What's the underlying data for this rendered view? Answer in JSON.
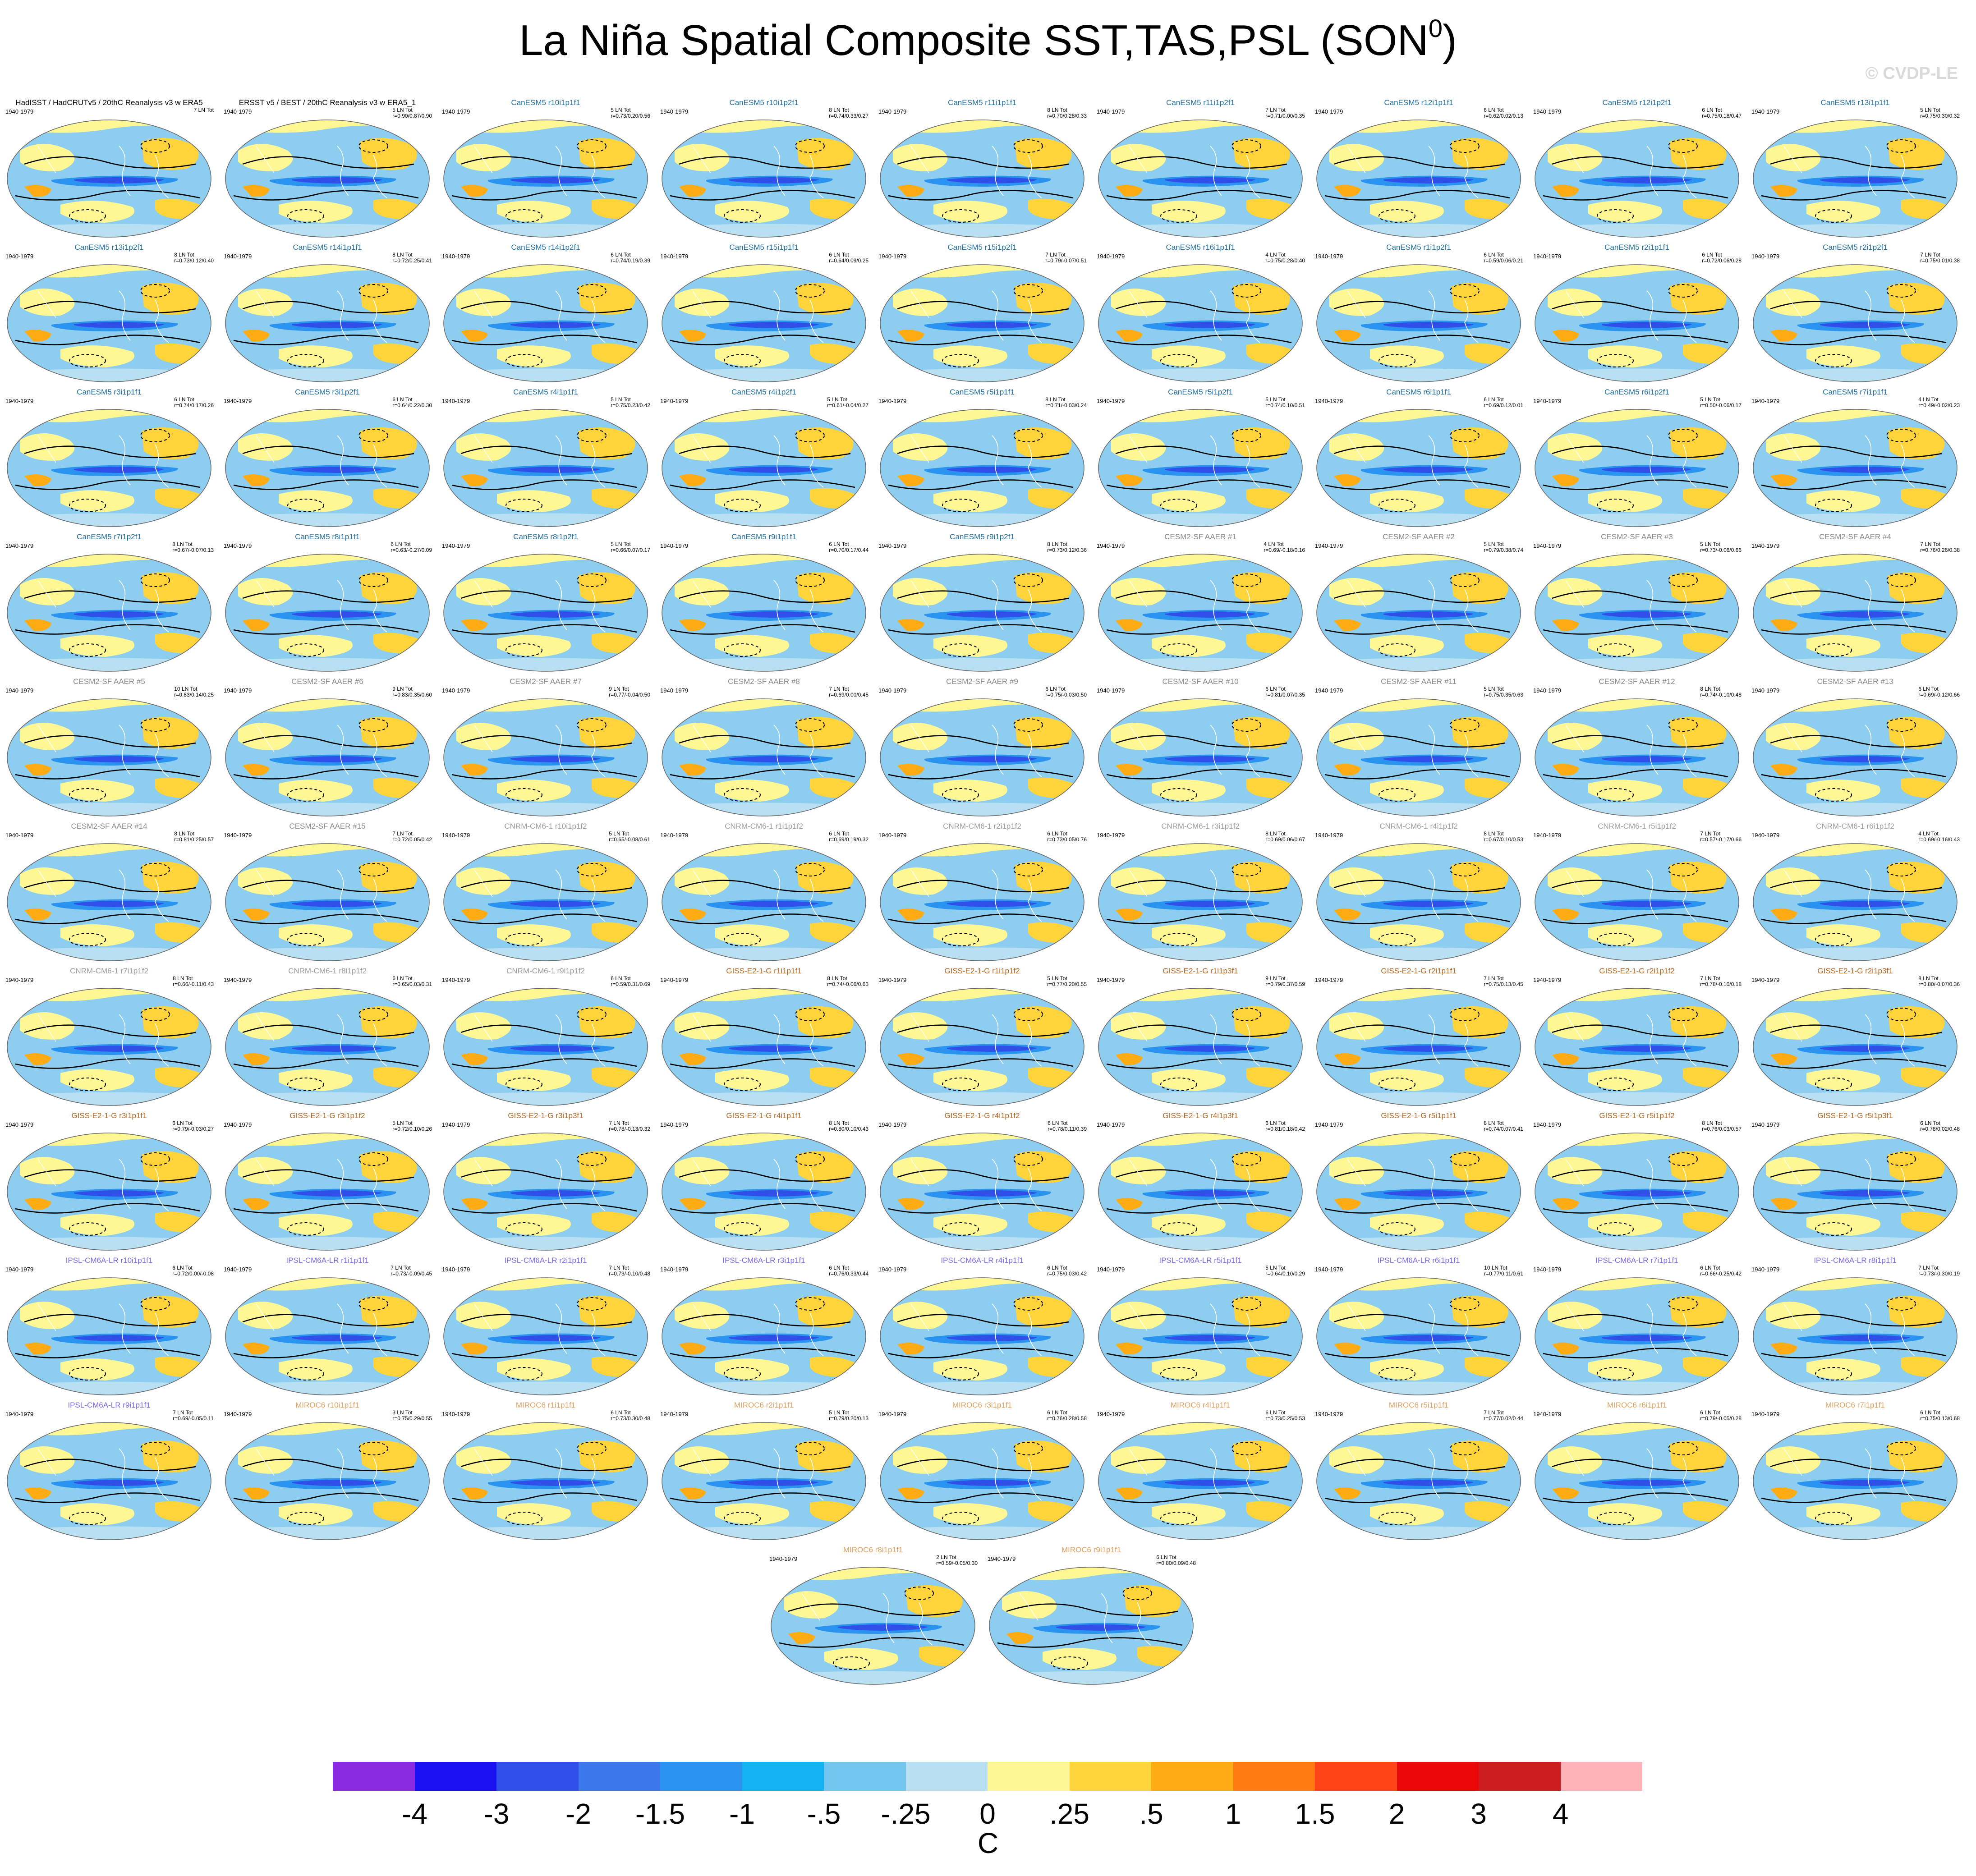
{
  "figure": {
    "title": "La Niña Spatial Composite SST,TAS,PSL (SON",
    "title_superscript": "0",
    "watermark": "© CVDP-LE",
    "units": "C"
  },
  "colorbar": {
    "colors": [
      "#8a2be2",
      "#1a10f0",
      "#2f4fe8",
      "#3d78ea",
      "#2a93f0",
      "#12b5f2",
      "#72c6ee",
      "#b9dff2",
      "#fff694",
      "#ffd43a",
      "#ffab14",
      "#ff7a10",
      "#ff4418",
      "#e80808",
      "#cc1e1e",
      "#ffb3b8"
    ],
    "labels": [
      "-4",
      "-3",
      "-2",
      "-1.5",
      "-1",
      "-.5",
      "-.25",
      "0",
      ".25",
      ".5",
      "1",
      "1.5",
      "2",
      "3",
      "4"
    ]
  },
  "panels": [
    {
      "title": "HadISST / HadCRUTv5 / 20thC Reanalysis v3 w ERA5",
      "period": "1940-1979",
      "count": "7 LN Tot",
      "stats": "",
      "title_color": "#000000"
    },
    {
      "title": "ERSST v5 / BEST / 20thC Reanalysis v3 w ERA5_1",
      "period": "1940-1979",
      "count": "5 LN Tot",
      "stats": "r=0.90/0.87/0.90",
      "title_color": "#000000"
    },
    {
      "title": "CanESM5 r10i1p1f1",
      "period": "1940-1979",
      "count": "5 LN Tot",
      "stats": "r=0.73/0.20/0.56",
      "title_color": "#1f6fa0"
    },
    {
      "title": "CanESM5 r10i1p2f1",
      "period": "1940-1979",
      "count": "8 LN Tot",
      "stats": "r=0.74/0.33/0.27",
      "title_color": "#1f6fa0"
    },
    {
      "title": "CanESM5 r11i1p1f1",
      "period": "1940-1979",
      "count": "8 LN Tot",
      "stats": "r=0.70/0.28/0.33",
      "title_color": "#1f6fa0"
    },
    {
      "title": "CanESM5 r11i1p2f1",
      "period": "1940-1979",
      "count": "7 LN Tot",
      "stats": "r=0.71/0.00/0.35",
      "title_color": "#1f6fa0"
    },
    {
      "title": "CanESM5 r12i1p1f1",
      "period": "1940-1979",
      "count": "6 LN Tot",
      "stats": "r=0.62/0.02/0.13",
      "title_color": "#1f6fa0"
    },
    {
      "title": "CanESM5 r12i1p2f1",
      "period": "1940-1979",
      "count": "6 LN Tot",
      "stats": "r=0.75/0.18/0.47",
      "title_color": "#1f6fa0"
    },
    {
      "title": "CanESM5 r13i1p1f1",
      "period": "1940-1979",
      "count": "5 LN Tot",
      "stats": "r=0.75/0.30/0.32",
      "title_color": "#1f6fa0"
    },
    {
      "title": "CanESM5 r13i1p2f1",
      "period": "1940-1979",
      "count": "8 LN Tot",
      "stats": "r=0.73/0.12/0.40",
      "title_color": "#1f6fa0"
    },
    {
      "title": "CanESM5 r14i1p1f1",
      "period": "1940-1979",
      "count": "8 LN Tot",
      "stats": "r=0.72/0.25/0.41",
      "title_color": "#1f6fa0"
    },
    {
      "title": "CanESM5 r14i1p2f1",
      "period": "1940-1979",
      "count": "6 LN Tot",
      "stats": "r=0.74/0.19/0.39",
      "title_color": "#1f6fa0"
    },
    {
      "title": "CanESM5 r15i1p1f1",
      "period": "1940-1979",
      "count": "6 LN Tot",
      "stats": "r=0.64/0.09/0.25",
      "title_color": "#1f6fa0"
    },
    {
      "title": "CanESM5 r15i1p2f1",
      "period": "1940-1979",
      "count": "7 LN Tot",
      "stats": "r=0.79/-0.07/0.51",
      "title_color": "#1f6fa0"
    },
    {
      "title": "CanESM5 r16i1p1f1",
      "period": "1940-1979",
      "count": "4 LN Tot",
      "stats": "r=0.75/0.28/0.40",
      "title_color": "#1f6fa0"
    },
    {
      "title": "CanESM5 r1i1p2f1",
      "period": "1940-1979",
      "count": "6 LN Tot",
      "stats": "r=0.59/0.06/0.21",
      "title_color": "#1f6fa0"
    },
    {
      "title": "CanESM5 r2i1p1f1",
      "period": "1940-1979",
      "count": "6 LN Tot",
      "stats": "r=0.72/0.06/0.28",
      "title_color": "#1f6fa0"
    },
    {
      "title": "CanESM5 r2i1p2f1",
      "period": "1940-1979",
      "count": "7 LN Tot",
      "stats": "r=0.75/0.01/0.38",
      "title_color": "#1f6fa0"
    },
    {
      "title": "CanESM5 r3i1p1f1",
      "period": "1940-1979",
      "count": "6 LN Tot",
      "stats": "r=0.74/0.17/0.26",
      "title_color": "#1f6fa0"
    },
    {
      "title": "CanESM5 r3i1p2f1",
      "period": "1940-1979",
      "count": "6 LN Tot",
      "stats": "r=0.64/0.22/0.30",
      "title_color": "#1f6fa0"
    },
    {
      "title": "CanESM5 r4i1p1f1",
      "period": "1940-1979",
      "count": "5 LN Tot",
      "stats": "r=0.75/0.23/0.42",
      "title_color": "#1f6fa0"
    },
    {
      "title": "CanESM5 r4i1p2f1",
      "period": "1940-1979",
      "count": "5 LN Tot",
      "stats": "r=0.61/-0.04/0.27",
      "title_color": "#1f6fa0"
    },
    {
      "title": "CanESM5 r5i1p1f1",
      "period": "1940-1979",
      "count": "8 LN Tot",
      "stats": "r=0.71/-0.03/0.24",
      "title_color": "#1f6fa0"
    },
    {
      "title": "CanESM5 r5i1p2f1",
      "period": "1940-1979",
      "count": "5 LN Tot",
      "stats": "r=0.74/0.10/0.51",
      "title_color": "#1f6fa0"
    },
    {
      "title": "CanESM5 r6i1p1f1",
      "period": "1940-1979",
      "count": "6 LN Tot",
      "stats": "r=0.69/0.12/0.01",
      "title_color": "#1f6fa0"
    },
    {
      "title": "CanESM5 r6i1p2f1",
      "period": "1940-1979",
      "count": "5 LN Tot",
      "stats": "r=0.50/-0.06/0.17",
      "title_color": "#1f6fa0"
    },
    {
      "title": "CanESM5 r7i1p1f1",
      "period": "1940-1979",
      "count": "4 LN Tot",
      "stats": "r=0.49/-0.02/0.23",
      "title_color": "#1f6fa0"
    },
    {
      "title": "CanESM5 r7i1p2f1",
      "period": "1940-1979",
      "count": "8 LN Tot",
      "stats": "r=0.67/-0.07/0.13",
      "title_color": "#1f6fa0"
    },
    {
      "title": "CanESM5 r8i1p1f1",
      "period": "1940-1979",
      "count": "6 LN Tot",
      "stats": "r=0.63/-0.27/0.09",
      "title_color": "#1f6fa0"
    },
    {
      "title": "CanESM5 r8i1p2f1",
      "period": "1940-1979",
      "count": "5 LN Tot",
      "stats": "r=0.66/0.07/0.17",
      "title_color": "#1f6fa0"
    },
    {
      "title": "CanESM5 r9i1p1f1",
      "period": "1940-1979",
      "count": "6 LN Tot",
      "stats": "r=0.70/0.17/0.44",
      "title_color": "#1f6fa0"
    },
    {
      "title": "CanESM5 r9i1p2f1",
      "period": "1940-1979",
      "count": "8 LN Tot",
      "stats": "r=0.73/0.12/0.36",
      "title_color": "#1f6fa0"
    },
    {
      "title": "CESM2-SF AAER #1",
      "period": "1940-1979",
      "count": "4 LN Tot",
      "stats": "r=0.69/-0.18/0.16",
      "title_color": "#8a8a8a"
    },
    {
      "title": "CESM2-SF AAER #2",
      "period": "1940-1979",
      "count": "5 LN Tot",
      "stats": "r=0.79/0.38/0.74",
      "title_color": "#8a8a8a"
    },
    {
      "title": "CESM2-SF AAER #3",
      "period": "1940-1979",
      "count": "5 LN Tot",
      "stats": "r=0.73/-0.06/0.66",
      "title_color": "#8a8a8a"
    },
    {
      "title": "CESM2-SF AAER #4",
      "period": "1940-1979",
      "count": "7 LN Tot",
      "stats": "r=0.76/0.26/0.38",
      "title_color": "#8a8a8a"
    },
    {
      "title": "CESM2-SF AAER #5",
      "period": "1940-1979",
      "count": "10 LN Tot",
      "stats": "r=0.83/0.14/0.25",
      "title_color": "#8a8a8a"
    },
    {
      "title": "CESM2-SF AAER #6",
      "period": "1940-1979",
      "count": "9 LN Tot",
      "stats": "r=0.83/0.35/0.60",
      "title_color": "#8a8a8a"
    },
    {
      "title": "CESM2-SF AAER #7",
      "period": "1940-1979",
      "count": "9 LN Tot",
      "stats": "r=0.77/-0.04/0.50",
      "title_color": "#8a8a8a"
    },
    {
      "title": "CESM2-SF AAER #8",
      "period": "1940-1979",
      "count": "7 LN Tot",
      "stats": "r=0.69/0.00/0.45",
      "title_color": "#8a8a8a"
    },
    {
      "title": "CESM2-SF AAER #9",
      "period": "1940-1979",
      "count": "6 LN Tot",
      "stats": "r=0.75/-0.03/0.50",
      "title_color": "#8a8a8a"
    },
    {
      "title": "CESM2-SF AAER #10",
      "period": "1940-1979",
      "count": "6 LN Tot",
      "stats": "r=0.81/0.07/0.35",
      "title_color": "#8a8a8a"
    },
    {
      "title": "CESM2-SF AAER #11",
      "period": "1940-1979",
      "count": "5 LN Tot",
      "stats": "r=0.75/0.35/0.63",
      "title_color": "#8a8a8a"
    },
    {
      "title": "CESM2-SF AAER #12",
      "period": "1940-1979",
      "count": "8 LN Tot",
      "stats": "r=0.74/-0.10/0.48",
      "title_color": "#8a8a8a"
    },
    {
      "title": "CESM2-SF AAER #13",
      "period": "1940-1979",
      "count": "6 LN Tot",
      "stats": "r=0.69/-0.12/0.66",
      "title_color": "#8a8a8a"
    },
    {
      "title": "CESM2-SF AAER #14",
      "period": "1940-1979",
      "count": "8 LN Tot",
      "stats": "r=0.81/0.25/0.57",
      "title_color": "#8a8a8a"
    },
    {
      "title": "CESM2-SF AAER #15",
      "period": "1940-1979",
      "count": "7 LN Tot",
      "stats": "r=0.72/0.05/0.42",
      "title_color": "#8a8a8a"
    },
    {
      "title": "CNRM-CM6-1 r10i1p1f2",
      "period": "1940-1979",
      "count": "5 LN Tot",
      "stats": "r=0.65/-0.08/0.61",
      "title_color": "#9c9c9c"
    },
    {
      "title": "CNRM-CM6-1 r1i1p1f2",
      "period": "1940-1979",
      "count": "6 LN Tot",
      "stats": "r=0.69/0.19/0.32",
      "title_color": "#9c9c9c"
    },
    {
      "title": "CNRM-CM6-1 r2i1p1f2",
      "period": "1940-1979",
      "count": "6 LN Tot",
      "stats": "r=0.73/0.05/0.76",
      "title_color": "#9c9c9c"
    },
    {
      "title": "CNRM-CM6-1 r3i1p1f2",
      "period": "1940-1979",
      "count": "8 LN Tot",
      "stats": "r=0.69/0.06/0.67",
      "title_color": "#9c9c9c"
    },
    {
      "title": "CNRM-CM6-1 r4i1p1f2",
      "period": "1940-1979",
      "count": "8 LN Tot",
      "stats": "r=0.67/0.10/0.53",
      "title_color": "#9c9c9c"
    },
    {
      "title": "CNRM-CM6-1 r5i1p1f2",
      "period": "1940-1979",
      "count": "7 LN Tot",
      "stats": "r=0.57/-0.17/0.66",
      "title_color": "#9c9c9c"
    },
    {
      "title": "CNRM-CM6-1 r6i1p1f2",
      "period": "1940-1979",
      "count": "4 LN Tot",
      "stats": "r=0.69/-0.16/0.43",
      "title_color": "#9c9c9c"
    },
    {
      "title": "CNRM-CM6-1 r7i1p1f2",
      "period": "1940-1979",
      "count": "8 LN Tot",
      "stats": "r=0.66/-0.11/0.43",
      "title_color": "#9c9c9c"
    },
    {
      "title": "CNRM-CM6-1 r8i1p1f2",
      "period": "1940-1979",
      "count": "6 LN Tot",
      "stats": "r=0.65/0.03/0.31",
      "title_color": "#9c9c9c"
    },
    {
      "title": "CNRM-CM6-1 r9i1p1f2",
      "period": "1940-1979",
      "count": "6 LN Tot",
      "stats": "r=0.59/0.31/0.69",
      "title_color": "#9c9c9c"
    },
    {
      "title": "GISS-E2-1-G r1i1p1f1",
      "period": "1940-1979",
      "count": "8 LN Tot",
      "stats": "r=0.74/-0.06/0.63",
      "title_color": "#b5651d"
    },
    {
      "title": "GISS-E2-1-G r1i1p1f2",
      "period": "1940-1979",
      "count": "5 LN Tot",
      "stats": "r=0.77/0.20/0.55",
      "title_color": "#b5651d"
    },
    {
      "title": "GISS-E2-1-G r1i1p3f1",
      "period": "1940-1979",
      "count": "9 LN Tot",
      "stats": "r=0.79/0.37/0.59",
      "title_color": "#b5651d"
    },
    {
      "title": "GISS-E2-1-G r2i1p1f1",
      "period": "1940-1979",
      "count": "7 LN Tot",
      "stats": "r=0.75/0.13/0.45",
      "title_color": "#b5651d"
    },
    {
      "title": "GISS-E2-1-G r2i1p1f2",
      "period": "1940-1979",
      "count": "7 LN Tot",
      "stats": "r=0.78/-0.10/0.18",
      "title_color": "#b5651d"
    },
    {
      "title": "GISS-E2-1-G r2i1p3f1",
      "period": "1940-1979",
      "count": "8 LN Tot",
      "stats": "r=0.80/-0.07/0.36",
      "title_color": "#b5651d"
    },
    {
      "title": "GISS-E2-1-G r3i1p1f1",
      "period": "1940-1979",
      "count": "6 LN Tot",
      "stats": "r=0.79/-0.03/0.27",
      "title_color": "#b5651d"
    },
    {
      "title": "GISS-E2-1-G r3i1p1f2",
      "period": "1940-1979",
      "count": "5 LN Tot",
      "stats": "r=0.72/0.10/0.26",
      "title_color": "#b5651d"
    },
    {
      "title": "GISS-E2-1-G r3i1p3f1",
      "period": "1940-1979",
      "count": "7 LN Tot",
      "stats": "r=0.78/-0.13/0.32",
      "title_color": "#b5651d"
    },
    {
      "title": "GISS-E2-1-G r4i1p1f1",
      "period": "1940-1979",
      "count": "8 LN Tot",
      "stats": "r=0.80/0.10/0.43",
      "title_color": "#b5651d"
    },
    {
      "title": "GISS-E2-1-G r4i1p1f2",
      "period": "1940-1979",
      "count": "6 LN Tot",
      "stats": "r=0.78/0.11/0.39",
      "title_color": "#b5651d"
    },
    {
      "title": "GISS-E2-1-G r4i1p3f1",
      "period": "1940-1979",
      "count": "6 LN Tot",
      "stats": "r=0.81/0.18/0.42",
      "title_color": "#b5651d"
    },
    {
      "title": "GISS-E2-1-G r5i1p1f1",
      "period": "1940-1979",
      "count": "8 LN Tot",
      "stats": "r=0.74/0.07/0.41",
      "title_color": "#b5651d"
    },
    {
      "title": "GISS-E2-1-G r5i1p1f2",
      "period": "1940-1979",
      "count": "8 LN Tot",
      "stats": "r=0.76/0.03/0.57",
      "title_color": "#b5651d"
    },
    {
      "title": "GISS-E2-1-G r5i1p3f1",
      "period": "1940-1979",
      "count": "6 LN Tot",
      "stats": "r=0.78/0.02/0.48",
      "title_color": "#b5651d"
    },
    {
      "title": "IPSL-CM6A-LR r10i1p1f1",
      "period": "1940-1979",
      "count": "6 LN Tot",
      "stats": "r=0.72/0.00/-0.08",
      "title_color": "#7b68ee"
    },
    {
      "title": "IPSL-CM6A-LR r1i1p1f1",
      "period": "1940-1979",
      "count": "7 LN Tot",
      "stats": "r=0.73/-0.09/0.45",
      "title_color": "#7b68ee"
    },
    {
      "title": "IPSL-CM6A-LR r2i1p1f1",
      "period": "1940-1979",
      "count": "7 LN Tot",
      "stats": "r=0.73/-0.10/0.48",
      "title_color": "#7b68ee"
    },
    {
      "title": "IPSL-CM6A-LR r3i1p1f1",
      "period": "1940-1979",
      "count": "6 LN Tot",
      "stats": "r=0.76/0.33/0.44",
      "title_color": "#7b68ee"
    },
    {
      "title": "IPSL-CM6A-LR r4i1p1f1",
      "period": "1940-1979",
      "count": "6 LN Tot",
      "stats": "r=0.75/0.03/0.42",
      "title_color": "#7b68ee"
    },
    {
      "title": "IPSL-CM6A-LR r5i1p1f1",
      "period": "1940-1979",
      "count": "5 LN Tot",
      "stats": "r=0.64/0.10/0.29",
      "title_color": "#7b68ee"
    },
    {
      "title": "IPSL-CM6A-LR r6i1p1f1",
      "period": "1940-1979",
      "count": "10 LN Tot",
      "stats": "r=0.77/0.11/0.61",
      "title_color": "#7b68ee"
    },
    {
      "title": "IPSL-CM6A-LR r7i1p1f1",
      "period": "1940-1979",
      "count": "6 LN Tot",
      "stats": "r=0.66/-0.25/0.42",
      "title_color": "#7b68ee"
    },
    {
      "title": "IPSL-CM6A-LR r8i1p1f1",
      "period": "1940-1979",
      "count": "7 LN Tot",
      "stats": "r=0.73/-0.30/0.19",
      "title_color": "#7b68ee"
    },
    {
      "title": "IPSL-CM6A-LR r9i1p1f1",
      "period": "1940-1979",
      "count": "7 LN Tot",
      "stats": "r=0.69/-0.05/0.11",
      "title_color": "#7b68ee"
    },
    {
      "title": "MIROC6 r10i1p1f1",
      "period": "1940-1979",
      "count": "3 LN Tot",
      "stats": "r=0.75/0.29/0.55",
      "title_color": "#e0a060"
    },
    {
      "title": "MIROC6 r1i1p1f1",
      "period": "1940-1979",
      "count": "6 LN Tot",
      "stats": "r=0.73/0.30/0.48",
      "title_color": "#e0a060"
    },
    {
      "title": "MIROC6 r2i1p1f1",
      "period": "1940-1979",
      "count": "5 LN Tot",
      "stats": "r=0.79/0.20/0.13",
      "title_color": "#e0a060"
    },
    {
      "title": "MIROC6 r3i1p1f1",
      "period": "1940-1979",
      "count": "6 LN Tot",
      "stats": "r=0.76/0.28/0.58",
      "title_color": "#e0a060"
    },
    {
      "title": "MIROC6 r4i1p1f1",
      "period": "1940-1979",
      "count": "6 LN Tot",
      "stats": "r=0.73/0.25/0.53",
      "title_color": "#e0a060"
    },
    {
      "title": "MIROC6 r5i1p1f1",
      "period": "1940-1979",
      "count": "7 LN Tot",
      "stats": "r=0.77/0.02/0.44",
      "title_color": "#e0a060"
    },
    {
      "title": "MIROC6 r6i1p1f1",
      "period": "1940-1979",
      "count": "6 LN Tot",
      "stats": "r=0.79/-0.05/0.28",
      "title_color": "#e0a060"
    },
    {
      "title": "MIROC6 r7i1p1f1",
      "period": "1940-1979",
      "count": "6 LN Tot",
      "stats": "r=0.75/0.13/0.68",
      "title_color": "#e0a060"
    },
    {
      "title": "MIROC6 r8i1p1f1",
      "period": "1940-1979",
      "count": "2 LN Tot",
      "stats": "r=0.59/-0.05/0.30",
      "title_color": "#e0a060"
    },
    {
      "title": "MIROC6 r9i1p1f1",
      "period": "1940-1979",
      "count": "6 LN Tot",
      "stats": "r=0.80/0.09/0.48",
      "title_color": "#e0a060"
    }
  ]
}
